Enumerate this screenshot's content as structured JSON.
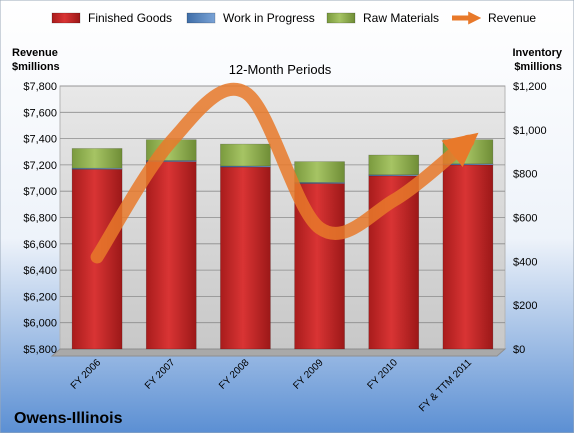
{
  "chart_data": {
    "type": "bar",
    "title": "12-Month Periods",
    "company": "Owens-Illinois",
    "categories": [
      "FY 2006",
      "FY 2007",
      "FY 2008",
      "FY 2009",
      "FY 2010",
      "FY & TTM 2011"
    ],
    "series": [
      {
        "name": "Finished Goods",
        "color": "#d42a2a",
        "axis": "right",
        "values": [
          820,
          855,
          830,
          755,
          790,
          840
        ]
      },
      {
        "name": "Work in Progress",
        "color": "#4f81bd",
        "axis": "right",
        "values": [
          5,
          5,
          5,
          5,
          5,
          5
        ]
      },
      {
        "name": "Raw Materials",
        "color": "#9bbb59",
        "axis": "right",
        "values": [
          90,
          95,
          100,
          95,
          90,
          110
        ]
      },
      {
        "name": "Revenue",
        "color": "#e8792a",
        "axis": "left",
        "type": "line",
        "values": [
          6500,
          7380,
          7750,
          6720,
          6930,
          7380
        ]
      }
    ],
    "left_axis": {
      "label_line1": "Revenue",
      "label_line2": "$millions",
      "range": [
        5800,
        7800
      ],
      "ticks": [
        "$5,800",
        "$6,000",
        "$6,200",
        "$6,400",
        "$6,600",
        "$6,800",
        "$7,000",
        "$7,200",
        "$7,400",
        "$7,600",
        "$7,800"
      ]
    },
    "right_axis": {
      "label_line1": "Inventory",
      "label_line2": "$millions",
      "range": [
        0,
        1200
      ],
      "ticks": [
        "$0",
        "$200",
        "$400",
        "$600",
        "$800",
        "$1,000",
        "$1,200"
      ]
    },
    "grid": true,
    "legend_position": "top"
  }
}
